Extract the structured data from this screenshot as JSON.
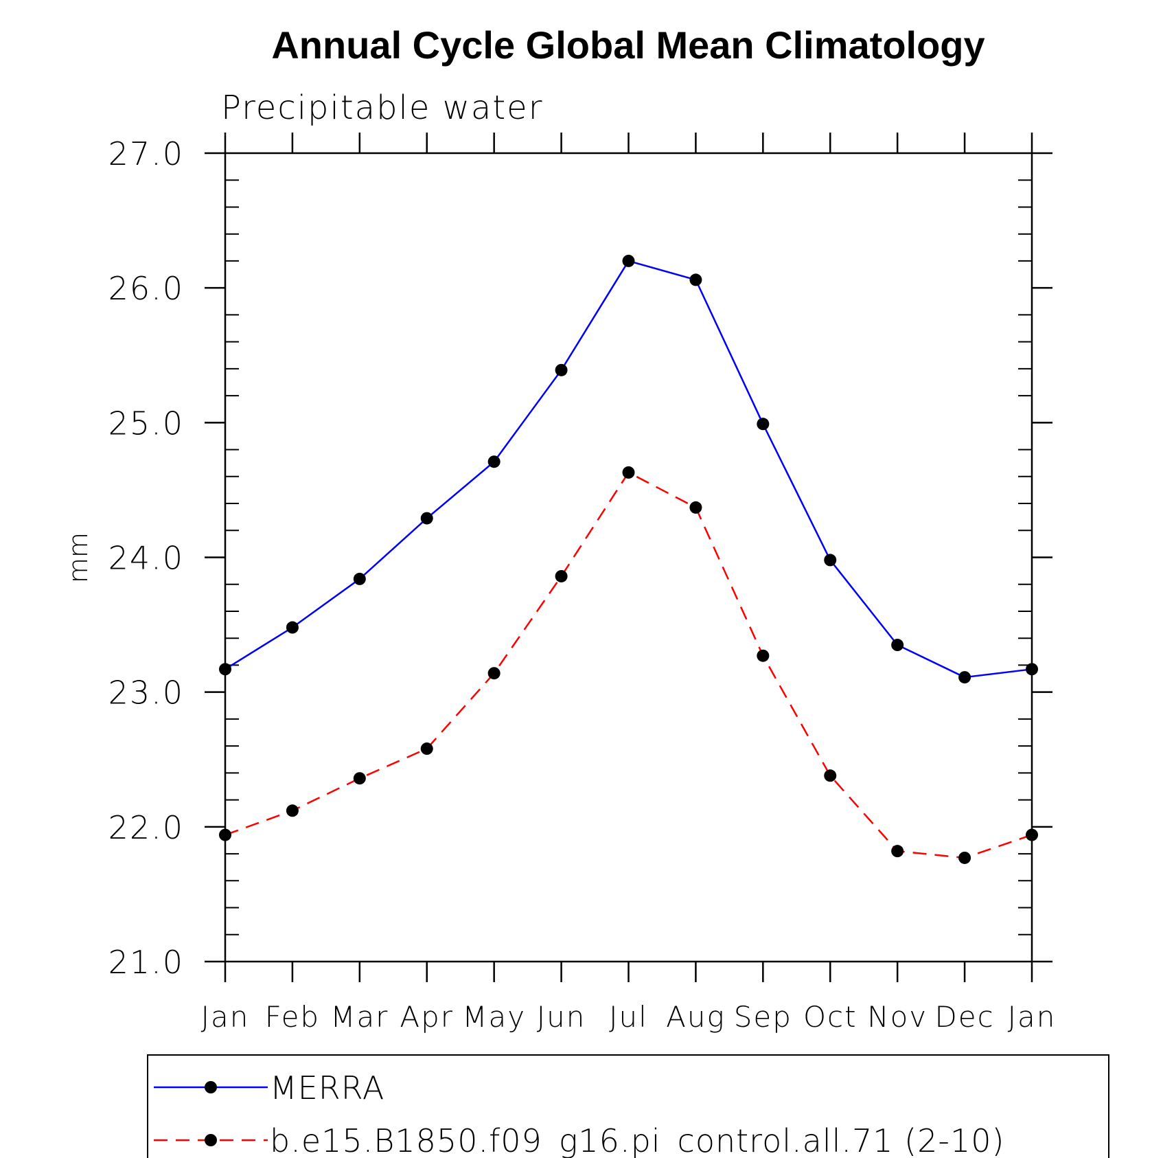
{
  "chart_data": {
    "type": "line",
    "title": "Annual Cycle Global Mean Climatology",
    "subtitle": "Precipitable water",
    "xlabel": "",
    "ylabel": "mm",
    "categories": [
      "Jan",
      "Feb",
      "Mar",
      "Apr",
      "May",
      "Jun",
      "Jul",
      "Aug",
      "Sep",
      "Oct",
      "Nov",
      "Dec",
      "Jan"
    ],
    "ylim": [
      21.0,
      27.0
    ],
    "yticks": [
      "21.0",
      "22.0",
      "23.0",
      "24.0",
      "25.0",
      "26.0",
      "27.0"
    ],
    "grid": false,
    "legend_position": "bottom",
    "series": [
      {
        "name": "MERRA",
        "color": "#0000ff",
        "dash": "solid",
        "values": [
          23.17,
          23.48,
          23.84,
          24.29,
          24.71,
          25.39,
          26.2,
          26.06,
          24.99,
          23.98,
          23.35,
          23.11,
          23.17
        ]
      },
      {
        "name": "b.e15.B1850.f09_g16.pi_control.all.71 (2-10)",
        "color": "#ff0000",
        "dash": "dashed",
        "values": [
          21.94,
          22.12,
          22.36,
          22.58,
          23.14,
          23.86,
          24.63,
          24.37,
          23.27,
          22.38,
          21.82,
          21.77,
          21.94
        ]
      }
    ]
  }
}
